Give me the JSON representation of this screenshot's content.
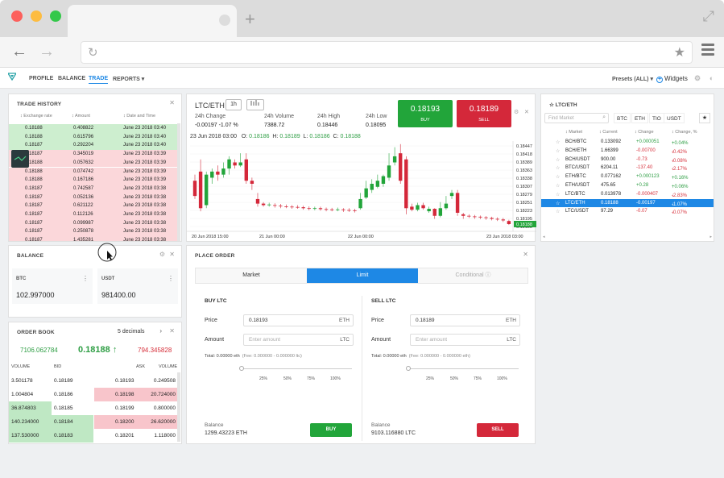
{
  "nav": {
    "items": [
      "PROFILE",
      "BALANCE",
      "TRADE",
      "REPORTS"
    ],
    "active": "TRADE",
    "presets": "Presets (ALL)",
    "widgets": "Widgets"
  },
  "trade_history": {
    "title": "TRADE HISTORY",
    "headers": [
      "Exchange rate",
      "Amount",
      "Date and Time"
    ],
    "rows": [
      {
        "rate": "0.18188",
        "amount": "0.408822",
        "date": "June 23 2018 03:40",
        "side": "buy"
      },
      {
        "rate": "0.18188",
        "amount": "0.615796",
        "date": "June 23 2018 03:40",
        "side": "buy"
      },
      {
        "rate": "0.18187",
        "amount": "0.292204",
        "date": "June 23 2018 03:40",
        "side": "buy"
      },
      {
        "rate": "0.18187",
        "amount": "0.345019",
        "date": "June 23 2018 03:39",
        "side": "sell"
      },
      {
        "rate": "0.18188",
        "amount": "0.057632",
        "date": "June 23 2018 03:39",
        "side": "sell"
      },
      {
        "rate": "0.18188",
        "amount": "0.074742",
        "date": "June 23 2018 03:39",
        "side": "sell"
      },
      {
        "rate": "0.18188",
        "amount": "0.167186",
        "date": "June 23 2018 03:39",
        "side": "sell"
      },
      {
        "rate": "0.18187",
        "amount": "0.742587",
        "date": "June 23 2018 03:38",
        "side": "sell"
      },
      {
        "rate": "0.18187",
        "amount": "0.052136",
        "date": "June 23 2018 03:38",
        "side": "sell"
      },
      {
        "rate": "0.18187",
        "amount": "0.621122",
        "date": "June 23 2018 03:38",
        "side": "sell"
      },
      {
        "rate": "0.18187",
        "amount": "0.112126",
        "date": "June 23 2018 03:38",
        "side": "sell"
      },
      {
        "rate": "0.18187",
        "amount": "0.099987",
        "date": "June 23 2018 03:38",
        "side": "sell"
      },
      {
        "rate": "0.18187",
        "amount": "0.250878",
        "date": "June 23 2018 03:38",
        "side": "sell"
      },
      {
        "rate": "0.18187",
        "amount": "1.435281",
        "date": "June 23 2018 03:38",
        "side": "sell"
      }
    ]
  },
  "balance": {
    "title": "BALANCE",
    "assets": [
      {
        "name": "BTC",
        "value": "102.997000"
      },
      {
        "name": "USDT",
        "value": "981400.00"
      }
    ]
  },
  "order_book": {
    "title": "ORDER BOOK",
    "decimals": "5 decimals",
    "bid_total": "7106.062784",
    "last": "0.18188",
    "ask_total": "794.345828",
    "headers": [
      "VOLUME",
      "BID",
      "ASK",
      "VOLUME"
    ],
    "rows": [
      {
        "bid_vol": "3.501178",
        "bid": "0.18189",
        "ask": "0.18193",
        "ask_vol": "0.249508",
        "bid_depth": 0,
        "ask_depth": 0
      },
      {
        "bid_vol": "1.004804",
        "bid": "0.18186",
        "ask": "0.18198",
        "ask_vol": "20.724000",
        "bid_depth": 0,
        "ask_depth": 1.0
      },
      {
        "bid_vol": "36.874803",
        "bid": "0.18185",
        "ask": "0.18199",
        "ask_vol": "0.800000",
        "bid_depth": 0.5,
        "ask_depth": 0
      },
      {
        "bid_vol": "140.234000",
        "bid": "0.18184",
        "ask": "0.18200",
        "ask_vol": "26.620000",
        "bid_depth": 1.0,
        "ask_depth": 1.0
      },
      {
        "bid_vol": "137.530000",
        "bid": "0.18183",
        "ask": "0.18201",
        "ask_vol": "1.118000",
        "bid_depth": 1.0,
        "ask_depth": 0
      }
    ]
  },
  "chart": {
    "pair": "LTC/ETH",
    "interval": "1h",
    "stats": [
      {
        "label": "24h Change",
        "value": "-0.00197  -1.07 %"
      },
      {
        "label": "24h Volume",
        "value": "7388.72"
      },
      {
        "label": "24h High",
        "value": "0.18446"
      },
      {
        "label": "24h Low",
        "value": "0.18095"
      }
    ],
    "buy_price": "0.18193",
    "buy_label": "BUY",
    "sell_price": "0.18189",
    "sell_label": "SELL",
    "ohlc_date": "23 Jun 2018 03:00",
    "ohlc": {
      "O": "0.18186",
      "H": "0.18189",
      "L": "0.18186",
      "C": "0.18188"
    },
    "x_labels": [
      "20 Jun 2018 15:00",
      "21 Jun 00:00",
      "22 Jun 00:00",
      "23 Jun 2018 03:00"
    ],
    "y_labels": [
      "0.18447",
      "0.18418",
      "0.18389",
      "0.18363",
      "0.18338",
      "0.18307",
      "0.18279",
      "0.18251",
      "0.18223",
      "0.18195",
      "0.18188"
    ],
    "last_price_tag": "0.18188"
  },
  "chart_data": {
    "type": "candlestick",
    "title": "LTC/ETH",
    "ylim": [
      0.1818,
      0.1846
    ],
    "candles": [
      {
        "o": 0.1833,
        "c": 0.1828,
        "h": 0.1835,
        "l": 0.1827
      },
      {
        "o": 0.1836,
        "c": 0.1824,
        "h": 0.184,
        "l": 0.1823
      },
      {
        "o": 0.1825,
        "c": 0.1835,
        "h": 0.1836,
        "l": 0.1824
      },
      {
        "o": 0.1834,
        "c": 0.1836,
        "h": 0.1837,
        "l": 0.1832
      },
      {
        "o": 0.1836,
        "c": 0.1835,
        "h": 0.1838,
        "l": 0.1833
      },
      {
        "o": 0.1835,
        "c": 0.1837,
        "h": 0.1839,
        "l": 0.1834
      },
      {
        "o": 0.1837,
        "c": 0.184,
        "h": 0.1841,
        "l": 0.1835
      },
      {
        "o": 0.1839,
        "c": 0.1838,
        "h": 0.184,
        "l": 0.1837
      },
      {
        "o": 0.1838,
        "c": 0.1839,
        "h": 0.1842,
        "l": 0.18375
      },
      {
        "o": 0.184,
        "c": 0.1833,
        "h": 0.1842,
        "l": 0.1832
      },
      {
        "o": 0.1833,
        "c": 0.1832,
        "h": 0.1834,
        "l": 0.183
      },
      {
        "o": 0.1827,
        "c": 0.18255,
        "h": 0.1829,
        "l": 0.18245
      },
      {
        "o": 0.18255,
        "c": 0.1825,
        "h": 0.1826,
        "l": 0.18245
      },
      {
        "o": 0.1825,
        "c": 0.18252,
        "h": 0.18258,
        "l": 0.18245
      },
      {
        "o": 0.1825,
        "c": 0.18248,
        "h": 0.18256,
        "l": 0.18242
      },
      {
        "o": 0.18248,
        "c": 0.18246,
        "h": 0.18254,
        "l": 0.1824
      },
      {
        "o": 0.18246,
        "c": 0.18245,
        "h": 0.18252,
        "l": 0.1824
      },
      {
        "o": 0.18245,
        "c": 0.18244,
        "h": 0.1825,
        "l": 0.18238
      },
      {
        "o": 0.18244,
        "c": 0.18243,
        "h": 0.1825,
        "l": 0.18238
      },
      {
        "o": 0.18243,
        "c": 0.1824,
        "h": 0.18248,
        "l": 0.18235
      },
      {
        "o": 0.1824,
        "c": 0.18238,
        "h": 0.18246,
        "l": 0.18233
      },
      {
        "o": 0.18238,
        "c": 0.1824,
        "h": 0.18245,
        "l": 0.18233
      },
      {
        "o": 0.1824,
        "c": 0.18237,
        "h": 0.18245,
        "l": 0.18232
      },
      {
        "o": 0.18237,
        "c": 0.18236,
        "h": 0.18242,
        "l": 0.1823
      },
      {
        "o": 0.18236,
        "c": 0.18235,
        "h": 0.18241,
        "l": 0.1823
      },
      {
        "o": 0.18235,
        "c": 0.18236,
        "h": 0.18242,
        "l": 0.1823
      },
      {
        "o": 0.18236,
        "c": 0.18234,
        "h": 0.1824,
        "l": 0.18228
      },
      {
        "o": 0.18234,
        "c": 0.18233,
        "h": 0.1824,
        "l": 0.18228
      },
      {
        "o": 0.18233,
        "c": 0.18232,
        "h": 0.18238,
        "l": 0.18226
      },
      {
        "o": 0.1824,
        "c": 0.1827,
        "h": 0.1829,
        "l": 0.18235
      },
      {
        "o": 0.18275,
        "c": 0.18305,
        "h": 0.1833,
        "l": 0.1827
      },
      {
        "o": 0.183,
        "c": 0.1832,
        "h": 0.18335,
        "l": 0.1829
      },
      {
        "o": 0.1831,
        "c": 0.1833,
        "h": 0.1835,
        "l": 0.18305
      },
      {
        "o": 0.1832,
        "c": 0.18345,
        "h": 0.1835,
        "l": 0.1831
      },
      {
        "o": 0.1834,
        "c": 0.1838,
        "h": 0.1842,
        "l": 0.1833
      },
      {
        "o": 0.1839,
        "c": 0.1841,
        "h": 0.1844,
        "l": 0.1838
      },
      {
        "o": 0.1842,
        "c": 0.1833,
        "h": 0.1845,
        "l": 0.1832
      },
      {
        "o": 0.184,
        "c": 0.1824,
        "h": 0.1841,
        "l": 0.1822
      },
      {
        "o": 0.18245,
        "c": 0.18235,
        "h": 0.18255,
        "l": 0.1823
      },
      {
        "o": 0.18235,
        "c": 0.1825,
        "h": 0.18258,
        "l": 0.1823
      },
      {
        "o": 0.1825,
        "c": 0.1824,
        "h": 0.18258,
        "l": 0.18235
      },
      {
        "o": 0.1823,
        "c": 0.18238,
        "h": 0.18245,
        "l": 0.18225
      },
      {
        "o": 0.18238,
        "c": 0.18215,
        "h": 0.1824,
        "l": 0.18205
      },
      {
        "o": 0.18215,
        "c": 0.1824,
        "h": 0.1826,
        "l": 0.1821
      },
      {
        "o": 0.1824,
        "c": 0.18255,
        "h": 0.1828,
        "l": 0.18235
      },
      {
        "o": 0.1828,
        "c": 0.1829,
        "h": 0.183,
        "l": 0.1827
      },
      {
        "o": 0.1829,
        "c": 0.18225,
        "h": 0.183,
        "l": 0.18215
      },
      {
        "o": 0.1822,
        "c": 0.18215,
        "h": 0.18225,
        "l": 0.18205
      },
      {
        "o": 0.18215,
        "c": 0.18213,
        "h": 0.1822,
        "l": 0.18208
      },
      {
        "o": 0.18213,
        "c": 0.18212,
        "h": 0.18218,
        "l": 0.18205
      },
      {
        "o": 0.18212,
        "c": 0.1821,
        "h": 0.18216,
        "l": 0.18204
      },
      {
        "o": 0.1821,
        "c": 0.18208,
        "h": 0.18214,
        "l": 0.18202
      },
      {
        "o": 0.18208,
        "c": 0.18205,
        "h": 0.18212,
        "l": 0.182
      },
      {
        "o": 0.18205,
        "c": 0.18203,
        "h": 0.1821,
        "l": 0.18198
      },
      {
        "o": 0.18203,
        "c": 0.182,
        "h": 0.18208,
        "l": 0.18195
      },
      {
        "o": 0.18198,
        "c": 0.18188,
        "h": 0.18202,
        "l": 0.18185
      }
    ]
  },
  "pairs": {
    "title": "LTC/ETH",
    "search_placeholder": "Find Market",
    "filters": [
      "BTC",
      "ETH",
      "TIO",
      "USDT"
    ],
    "headers": [
      "Market",
      "Current",
      "Change",
      "Change, %"
    ],
    "rows": [
      {
        "market": "BCH/BTC",
        "current": "0.133092",
        "change": "+0.000051",
        "pct": "+0.04%",
        "dir": "up"
      },
      {
        "market": "BCH/ETH",
        "current": "1.66399",
        "change": "-0.00700",
        "pct": "-0.42%",
        "dir": "down"
      },
      {
        "market": "BCH/USDT",
        "current": "900.00",
        "change": "-0.73",
        "pct": "-0.08%",
        "dir": "down"
      },
      {
        "market": "BTC/USDT",
        "current": "6204.11",
        "change": "-137.40",
        "pct": "-2.17%",
        "dir": "down"
      },
      {
        "market": "ETH/BTC",
        "current": "0.077162",
        "change": "+0.000123",
        "pct": "+0.16%",
        "dir": "up"
      },
      {
        "market": "ETH/USDT",
        "current": "475.65",
        "change": "+0.28",
        "pct": "+0.06%",
        "dir": "up"
      },
      {
        "market": "LTC/BTC",
        "current": "0.013978",
        "change": "-0.000407",
        "pct": "-2.83%",
        "dir": "down"
      },
      {
        "market": "LTC/ETH",
        "current": "0.18188",
        "change": "-0.00197",
        "pct": "-1.07%",
        "dir": "down",
        "selected": true
      },
      {
        "market": "LTC/USDT",
        "current": "97.29",
        "change": "-0.07",
        "pct": "-0.07%",
        "dir": "down"
      }
    ]
  },
  "place_order": {
    "title": "PLACE ORDER",
    "tabs": [
      "Market",
      "Limit",
      "Conditional"
    ],
    "active_tab": "Limit",
    "buy": {
      "title": "BUY LTC",
      "price_label": "Price",
      "price": "0.18193",
      "price_unit": "ETH",
      "amount_label": "Amount",
      "amount_placeholder": "Enter amount",
      "amount_unit": "LTC",
      "total": "Total: 0.00000 eth",
      "fee": "(Fee: 0.000000 - 0.000000 ltc)",
      "balance_label": "Balance",
      "balance": "1299.43223 ETH",
      "button": "BUY"
    },
    "sell": {
      "title": "SELL LTC",
      "price_label": "Price",
      "price": "0.18189",
      "price_unit": "ETH",
      "amount_label": "Amount",
      "amount_placeholder": "Enter amount",
      "amount_unit": "LTC",
      "total": "Total: 0.00000 eth",
      "fee": "(Fee: 0.000000 - 0.000000 eth)",
      "balance_label": "Balance",
      "balance": "9103.116880 LTC",
      "button": "SELL"
    },
    "ticks": [
      "25%",
      "50%",
      "75%",
      "100%"
    ]
  },
  "colors": {
    "buy": "#22a53a",
    "sell": "#d4283a",
    "accent": "#1e88e5"
  }
}
